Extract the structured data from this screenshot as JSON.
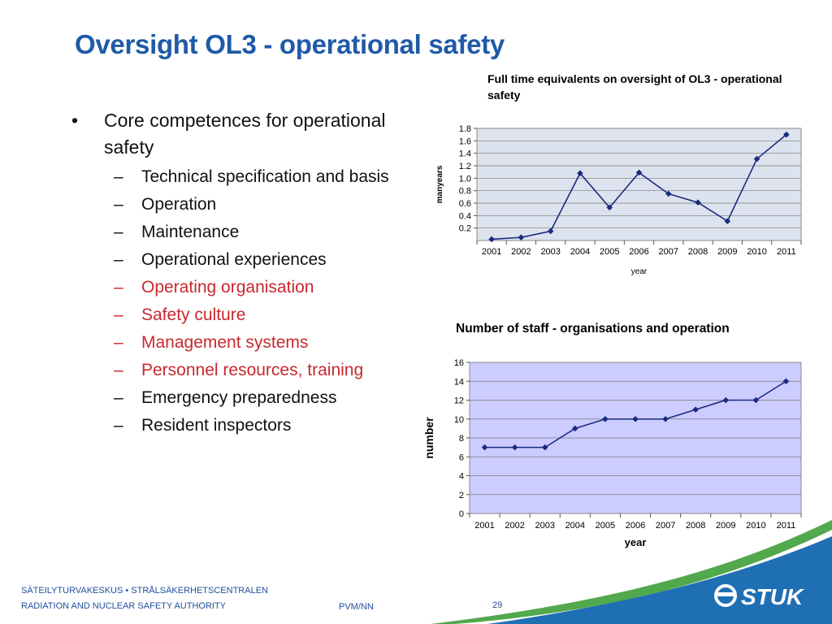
{
  "slide": {
    "title": "Oversight OL3 - operational safety",
    "bullet": "Core competences for operational safety",
    "sub_items": [
      {
        "text": "Technical specification and basis",
        "color": "#111111"
      },
      {
        "text": "Operation",
        "color": "#111111"
      },
      {
        "text": "Maintenance",
        "color": "#111111"
      },
      {
        "text": "Operational experiences",
        "color": "#111111"
      },
      {
        "text": "Operating organisation",
        "color": "#c8282e"
      },
      {
        "text": "Safety culture",
        "color": "#c8282e"
      },
      {
        "text": "Management systems",
        "color": "#c8282e"
      },
      {
        "text": "Personnel resources, training",
        "color": "#c8282e"
      },
      {
        "text": "Emergency preparedness",
        "color": "#111111"
      },
      {
        "text": "Resident inspectors",
        "color": "#111111"
      }
    ]
  },
  "chart_data": [
    {
      "type": "line",
      "title": "Full time equivalents on oversight of OL3 - operational safety",
      "xlabel": "year",
      "ylabel": "manyears",
      "categories": [
        "2001",
        "2002",
        "2003",
        "2004",
        "2005",
        "2006",
        "2007",
        "2008",
        "2009",
        "2010",
        "2011"
      ],
      "values": [
        0.02,
        0.05,
        0.15,
        1.08,
        0.53,
        1.09,
        0.75,
        0.61,
        0.31,
        1.31,
        1.7
      ],
      "ylim": [
        0,
        1.8
      ],
      "yticks": [
        "0.2",
        "0.4",
        "0.6",
        "0.8",
        "1.0",
        "1.2",
        "1.4",
        "1.6",
        "1.8"
      ],
      "plot_bg": "#dde3ee",
      "line_color": "#1a2a80",
      "grid": true
    },
    {
      "type": "line",
      "title": "Number of staff - organisations and operation",
      "xlabel": "year",
      "ylabel": "number",
      "categories": [
        "2001",
        "2002",
        "2003",
        "2004",
        "2005",
        "2006",
        "2007",
        "2008",
        "2009",
        "2010",
        "2011"
      ],
      "values": [
        7,
        7,
        7,
        9,
        10,
        10,
        10,
        11,
        12,
        12,
        14
      ],
      "ylim": [
        0,
        16
      ],
      "yticks": [
        "0",
        "2",
        "4",
        "6",
        "8",
        "10",
        "12",
        "14",
        "16"
      ],
      "plot_bg": "#ccccff",
      "line_color": "#1a2a80",
      "grid": true
    }
  ],
  "footer": {
    "org_line1": "SÄTEILYTURVAKESKUS • STRÅLSÄKERHETSCENTRALEN",
    "org_line2": "RADIATION AND NUCLEAR SAFETY AUTHORITY",
    "pvm": "PVM/NN",
    "page": "29",
    "logo_text": "STUK",
    "accent": "#1f6fb5"
  }
}
